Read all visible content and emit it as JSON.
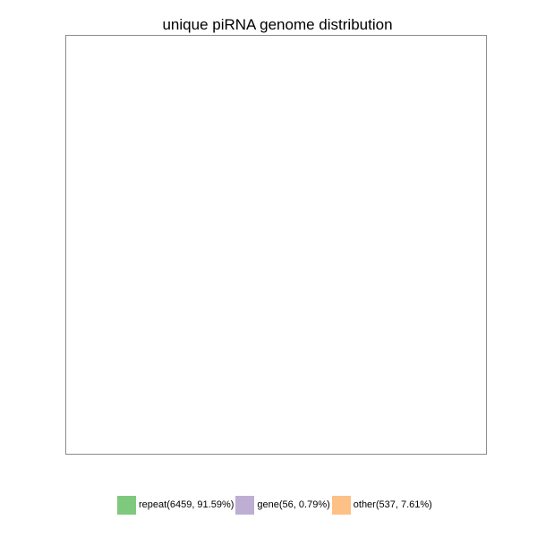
{
  "chart_data": {
    "type": "pie",
    "title": "unique piRNA genome distribution",
    "categories": [
      "repeat",
      "gene",
      "other"
    ],
    "values": [
      6459,
      56,
      537
    ],
    "percentages": [
      91.59,
      0.79,
      7.61
    ],
    "colors": [
      "#7fc97f",
      "#beaed4",
      "#fdc086"
    ],
    "legend_labels": [
      "repeat(6459, 91.59%)",
      "gene(56, 0.79%)",
      "other(537, 7.61%)"
    ],
    "legend_position": "bottom",
    "slices_visible": false
  }
}
